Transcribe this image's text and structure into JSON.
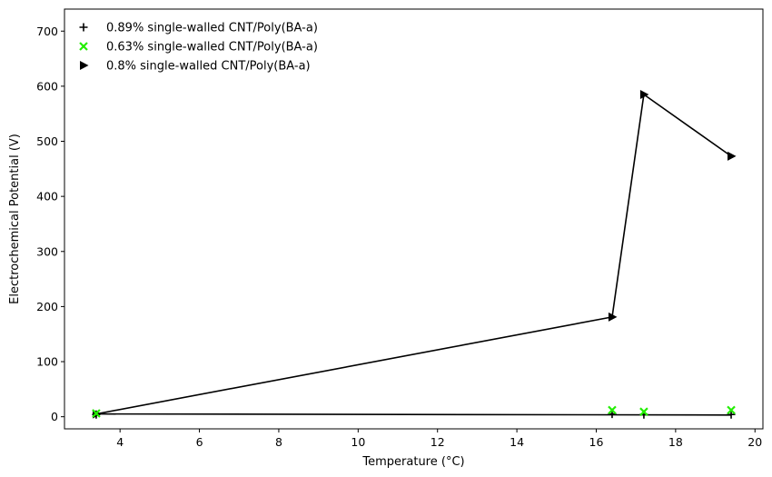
{
  "chart_data": {
    "type": "line",
    "title": "",
    "xlabel": "Temperature (°C)",
    "ylabel": "Electrochemical Potential (V)",
    "xlim": [
      2.6,
      20.2
    ],
    "ylim": [
      -22,
      740
    ],
    "xticks": [
      4,
      6,
      8,
      10,
      12,
      14,
      16,
      18,
      20
    ],
    "yticks": [
      0,
      100,
      200,
      300,
      400,
      500,
      600,
      700
    ],
    "grid": false,
    "legend_position": "top-left",
    "series": [
      {
        "name": "0.89% single-walled CNT/Poly(BA-a)",
        "kind": "scatter",
        "marker": "plus",
        "color": "#000000",
        "points": [
          [
            3.4,
            4
          ],
          [
            16.4,
            5
          ],
          [
            17.2,
            4
          ],
          [
            19.4,
            4
          ]
        ]
      },
      {
        "name": "0.63% single-walled CNT/Poly(BA-a)",
        "kind": "scatter",
        "marker": "x",
        "color": "#22ee00",
        "points": [
          [
            3.4,
            6
          ],
          [
            16.4,
            12
          ],
          [
            17.2,
            9
          ],
          [
            19.4,
            12
          ]
        ]
      },
      {
        "name": "0.8% single-walled CNT/Poly(BA-a)",
        "kind": "scatter",
        "marker": "triangle-right",
        "color": "#000000",
        "points": [
          [
            3.4,
            5
          ],
          [
            16.4,
            181
          ],
          [
            17.2,
            585
          ],
          [
            19.4,
            473
          ]
        ]
      }
    ],
    "lines": [
      {
        "color": "#000000",
        "points": [
          [
            3.4,
            5
          ],
          [
            16.4,
            181
          ],
          [
            17.2,
            585
          ],
          [
            19.4,
            473
          ]
        ]
      },
      {
        "color": "#000000",
        "points": [
          [
            3.4,
            5
          ],
          [
            19.4,
            3
          ]
        ]
      }
    ]
  }
}
